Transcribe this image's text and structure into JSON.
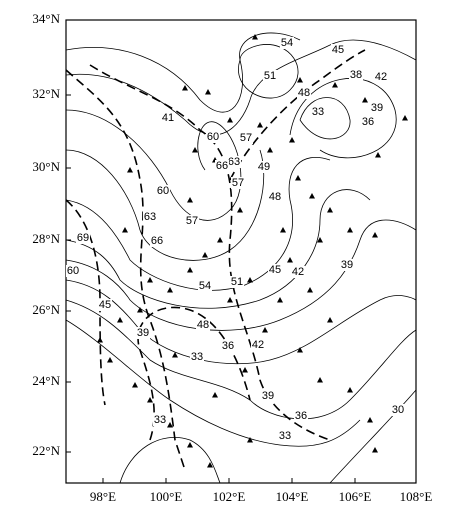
{
  "axes": {
    "lat_labels": [
      "34°N",
      "32°N",
      "30°N",
      "28°N",
      "26°N",
      "24°N",
      "22°N"
    ],
    "lon_labels": [
      "98°E",
      "100°E",
      "102°E",
      "104°E",
      "106°E",
      "108°E"
    ]
  },
  "contour_labels": [
    "54",
    "45",
    "51",
    "38",
    "42",
    "48",
    "33",
    "39",
    "36",
    "41",
    "60",
    "63",
    "57",
    "66",
    "49",
    "48",
    "57",
    "60",
    "63",
    "57",
    "66",
    "69",
    "60",
    "54",
    "51",
    "45",
    "42",
    "39",
    "45",
    "48",
    "39",
    "36",
    "33",
    "42",
    "39",
    "36",
    "33",
    "33",
    "30"
  ]
}
